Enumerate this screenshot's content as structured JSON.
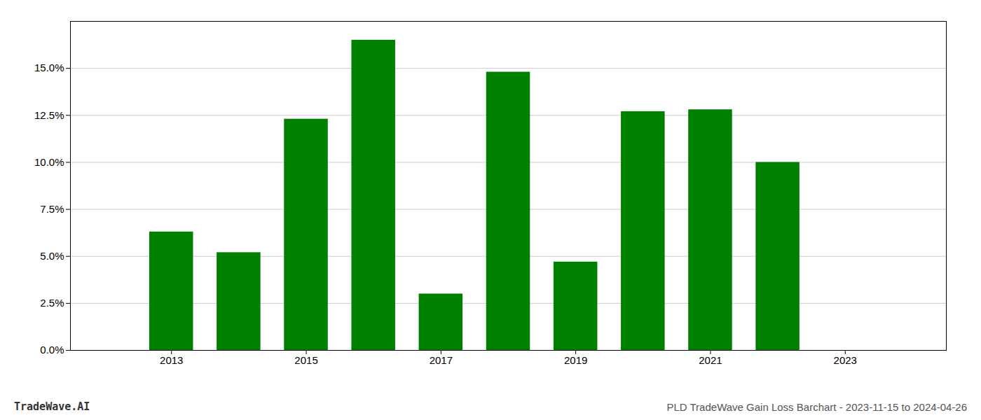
{
  "chart_data": {
    "type": "bar",
    "title": "PLD TradeWave Gain Loss Barchart - 2023-11-15 to 2024-04-26",
    "annotations": [
      "TradeWave.AI"
    ],
    "x": [
      2013,
      2014,
      2015,
      2016,
      2017,
      2018,
      2019,
      2020,
      2021,
      2022,
      2023
    ],
    "values": [
      0.063,
      0.052,
      0.123,
      0.165,
      0.03,
      0.148,
      0.047,
      0.127,
      0.128,
      0.1,
      null
    ],
    "color": "#008000",
    "xlim": [
      2011.5,
      2024.5
    ],
    "xticks": [
      2013,
      2015,
      2017,
      2019,
      2021,
      2023
    ],
    "ylim": [
      0,
      0.175
    ],
    "yticks": [
      {
        "value": 0.0,
        "label": "0.0%"
      },
      {
        "value": 0.025,
        "label": "2.5%"
      },
      {
        "value": 0.05,
        "label": "5.0%"
      },
      {
        "value": 0.075,
        "label": "7.5%"
      },
      {
        "value": 0.1,
        "label": "10.0%"
      },
      {
        "value": 0.125,
        "label": "12.5%"
      },
      {
        "value": 0.15,
        "label": "15.0%"
      }
    ],
    "grid": true
  }
}
